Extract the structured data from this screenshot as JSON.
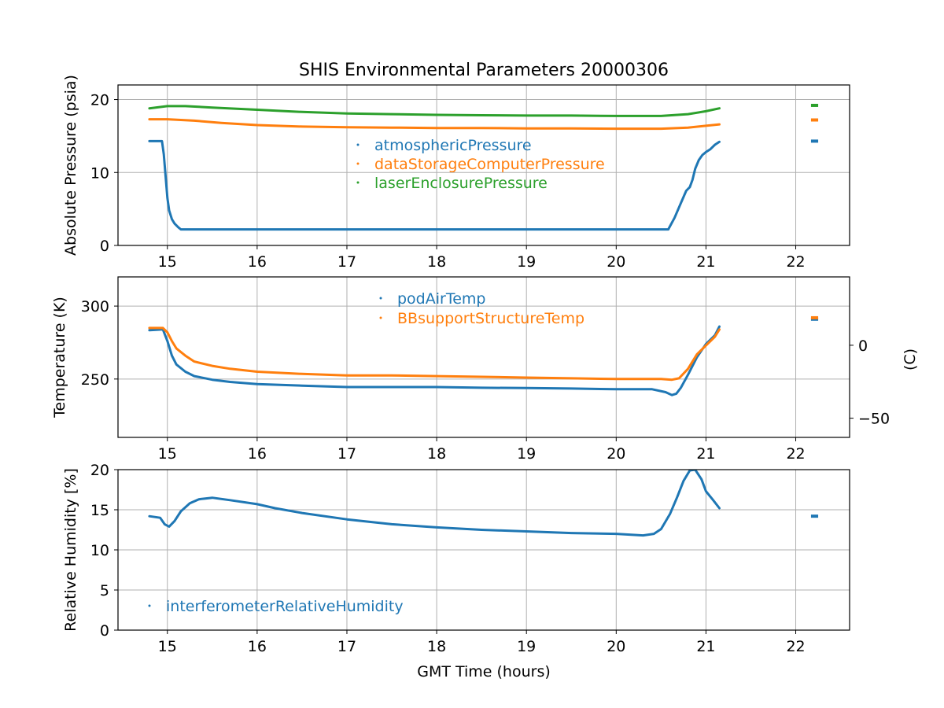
{
  "chart_data": [
    {
      "type": "scatter",
      "title": "SHIS Environmental Parameters 20000306",
      "xlabel": "",
      "ylabel": "Absolute Pressure (psia)",
      "xlim": [
        14.45,
        22.6
      ],
      "ylim": [
        0,
        22
      ],
      "xticks": [
        15,
        16,
        17,
        18,
        19,
        20,
        21,
        22
      ],
      "yticks": [
        0,
        10,
        20
      ],
      "grid": true,
      "legend_position": "upper-center",
      "series": [
        {
          "name": "atmosphericPressure",
          "color": "#1f77b4",
          "x": [
            14.8,
            14.94,
            14.96,
            14.98,
            15.0,
            15.02,
            15.05,
            15.08,
            15.12,
            15.15,
            15.5,
            16.0,
            17.0,
            18.0,
            19.0,
            20.0,
            20.5,
            20.58,
            20.65,
            20.72,
            20.78,
            20.82,
            20.85,
            20.88,
            20.92,
            20.96,
            21.0,
            21.05,
            21.1,
            21.15
          ],
          "y": [
            14.3,
            14.3,
            12.5,
            9.5,
            6.5,
            4.8,
            3.6,
            3.0,
            2.5,
            2.2,
            2.2,
            2.2,
            2.2,
            2.2,
            2.2,
            2.2,
            2.2,
            2.2,
            3.8,
            5.8,
            7.5,
            8.0,
            9.0,
            10.5,
            11.7,
            12.4,
            12.8,
            13.2,
            13.8,
            14.2
          ]
        },
        {
          "name": "dataStorageComputerPressure",
          "color": "#ff7f0e",
          "x": [
            14.8,
            15.0,
            15.3,
            15.6,
            16.0,
            16.5,
            17.0,
            17.5,
            18.0,
            18.5,
            19.0,
            19.5,
            20.0,
            20.5,
            20.8,
            21.0,
            21.15
          ],
          "y": [
            17.3,
            17.3,
            17.1,
            16.8,
            16.5,
            16.3,
            16.2,
            16.15,
            16.1,
            16.1,
            16.05,
            16.05,
            16.0,
            16.0,
            16.15,
            16.4,
            16.6
          ]
        },
        {
          "name": "laserEnclosurePressure",
          "color": "#2ca02c",
          "x": [
            14.8,
            15.0,
            15.2,
            15.5,
            16.0,
            16.5,
            17.0,
            17.5,
            18.0,
            18.5,
            19.0,
            19.5,
            20.0,
            20.5,
            20.8,
            21.0,
            21.15
          ],
          "y": [
            18.8,
            19.1,
            19.1,
            18.9,
            18.6,
            18.3,
            18.1,
            18.0,
            17.9,
            17.85,
            17.8,
            17.8,
            17.75,
            17.75,
            18.0,
            18.4,
            18.8
          ]
        }
      ],
      "clusters": [
        {
          "series": "atmosphericPressure",
          "x": [
            22.17,
            22.25
          ],
          "y": 14.3
        },
        {
          "series": "dataStorageComputerPressure",
          "x": [
            22.17,
            22.25
          ],
          "y": 17.2
        },
        {
          "series": "laserEnclosurePressure",
          "x": [
            22.17,
            22.25
          ],
          "y": 19.2
        }
      ]
    },
    {
      "type": "scatter",
      "title": "",
      "xlabel": "",
      "ylabel": "Temperature (K)",
      "ylabel_right": "(C)",
      "xlim": [
        14.45,
        22.6
      ],
      "ylim": [
        210,
        320
      ],
      "ylim_right_celsius": [
        -63.15,
        46.85
      ],
      "xticks": [
        15,
        16,
        17,
        18,
        19,
        20,
        21,
        22
      ],
      "yticks": [
        250,
        300
      ],
      "yticks_right": [
        0,
        -50
      ],
      "grid": true,
      "legend_position": "upper-center",
      "series": [
        {
          "name": "podAirTemp",
          "color": "#1f77b4",
          "x": [
            14.8,
            14.95,
            15.0,
            15.05,
            15.1,
            15.2,
            15.3,
            15.5,
            15.7,
            16.0,
            16.5,
            17.0,
            17.5,
            18.0,
            18.5,
            19.0,
            19.5,
            20.0,
            20.4,
            20.55,
            20.62,
            20.67,
            20.72,
            20.8,
            20.9,
            21.0,
            21.1,
            21.15
          ],
          "y": [
            283.5,
            284,
            276,
            266,
            260,
            255,
            252,
            249.5,
            248,
            246.5,
            245.5,
            244.5,
            244.5,
            244.5,
            244,
            243.8,
            243.5,
            243,
            243,
            241,
            239,
            240,
            244,
            253,
            265,
            274,
            280,
            286
          ]
        },
        {
          "name": "BBsupportStructureTemp",
          "color": "#ff7f0e",
          "x": [
            14.8,
            14.95,
            15.0,
            15.05,
            15.1,
            15.2,
            15.3,
            15.5,
            15.7,
            16.0,
            16.5,
            17.0,
            17.5,
            18.0,
            18.5,
            19.0,
            19.5,
            20.0,
            20.5,
            20.62,
            20.7,
            20.8,
            20.9,
            21.0,
            21.1,
            21.15
          ],
          "y": [
            285,
            285,
            282,
            276,
            271,
            266,
            262,
            259,
            257,
            255,
            253.5,
            252.5,
            252.5,
            252,
            251.5,
            251,
            250.5,
            250,
            250,
            249.5,
            250.5,
            257,
            267,
            273,
            279,
            284
          ]
        }
      ],
      "clusters": [
        {
          "series": "podAirTemp",
          "x": [
            22.17,
            22.25
          ],
          "y": 291
        },
        {
          "series": "BBsupportStructureTemp",
          "x": [
            22.17,
            22.25
          ],
          "y": 292
        }
      ]
    },
    {
      "type": "scatter",
      "title": "",
      "xlabel": "GMT Time (hours)",
      "ylabel": "Relative Humidity [%]",
      "xlim": [
        14.45,
        22.6
      ],
      "ylim": [
        0,
        20
      ],
      "xticks": [
        15,
        16,
        17,
        18,
        19,
        20,
        21,
        22
      ],
      "yticks": [
        0,
        5,
        10,
        15,
        20
      ],
      "grid": true,
      "legend_position": "lower-left",
      "series": [
        {
          "name": "interferometerRelativeHumidity",
          "color": "#1f77b4",
          "x": [
            14.8,
            14.92,
            14.97,
            15.02,
            15.08,
            15.15,
            15.25,
            15.35,
            15.5,
            15.7,
            16.0,
            16.2,
            16.5,
            17.0,
            17.5,
            18.0,
            18.5,
            19.0,
            19.5,
            20.0,
            20.3,
            20.42,
            20.5,
            20.6,
            20.68,
            20.75,
            20.82,
            20.88,
            20.95,
            21.0,
            21.08,
            21.15
          ],
          "y": [
            14.2,
            14.0,
            13.2,
            12.9,
            13.6,
            14.8,
            15.8,
            16.3,
            16.5,
            16.2,
            15.7,
            15.2,
            14.6,
            13.8,
            13.2,
            12.8,
            12.5,
            12.3,
            12.1,
            12.0,
            11.8,
            12.0,
            12.6,
            14.5,
            16.6,
            18.6,
            19.9,
            20.0,
            18.8,
            17.3,
            16.2,
            15.2
          ]
        }
      ],
      "clusters": [
        {
          "series": "interferometerRelativeHumidity",
          "x": [
            22.17,
            22.25
          ],
          "y": 14.2
        }
      ]
    }
  ]
}
